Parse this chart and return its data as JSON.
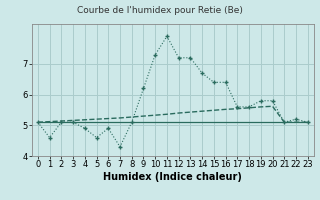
{
  "title": "Courbe de l'humidex pour Retie (Be)",
  "xlabel": "Humidex (Indice chaleur)",
  "x": [
    0,
    1,
    2,
    3,
    4,
    5,
    6,
    7,
    8,
    9,
    10,
    11,
    12,
    13,
    14,
    15,
    16,
    17,
    18,
    19,
    20,
    21,
    22,
    23
  ],
  "y_main": [
    5.1,
    4.6,
    5.1,
    5.1,
    4.9,
    4.6,
    4.9,
    4.3,
    5.1,
    6.2,
    7.3,
    7.9,
    7.2,
    7.2,
    6.7,
    6.4,
    6.4,
    5.6,
    5.6,
    5.8,
    5.8,
    5.1,
    5.2,
    5.1
  ],
  "y_flat": [
    5.1,
    5.1,
    5.1,
    5.1,
    5.1,
    5.1,
    5.1,
    5.1,
    5.1,
    5.1,
    5.1,
    5.1,
    5.1,
    5.1,
    5.1,
    5.1,
    5.1,
    5.1,
    5.1,
    5.1,
    5.1,
    5.1,
    5.1,
    5.1
  ],
  "y_rising": [
    5.1,
    5.12,
    5.14,
    5.16,
    5.18,
    5.2,
    5.22,
    5.24,
    5.27,
    5.3,
    5.33,
    5.36,
    5.4,
    5.43,
    5.46,
    5.49,
    5.52,
    5.54,
    5.57,
    5.6,
    5.62,
    5.1,
    5.1,
    5.1
  ],
  "ylim": [
    4.0,
    8.3
  ],
  "yticks": [
    4,
    5,
    6,
    7
  ],
  "xlim": [
    -0.5,
    23.5
  ],
  "bg_color": "#cde8e8",
  "grid_color": "#aacccc",
  "line_color": "#2a6b5e",
  "title_fontsize": 6.5,
  "label_fontsize": 7,
  "tick_fontsize": 6
}
